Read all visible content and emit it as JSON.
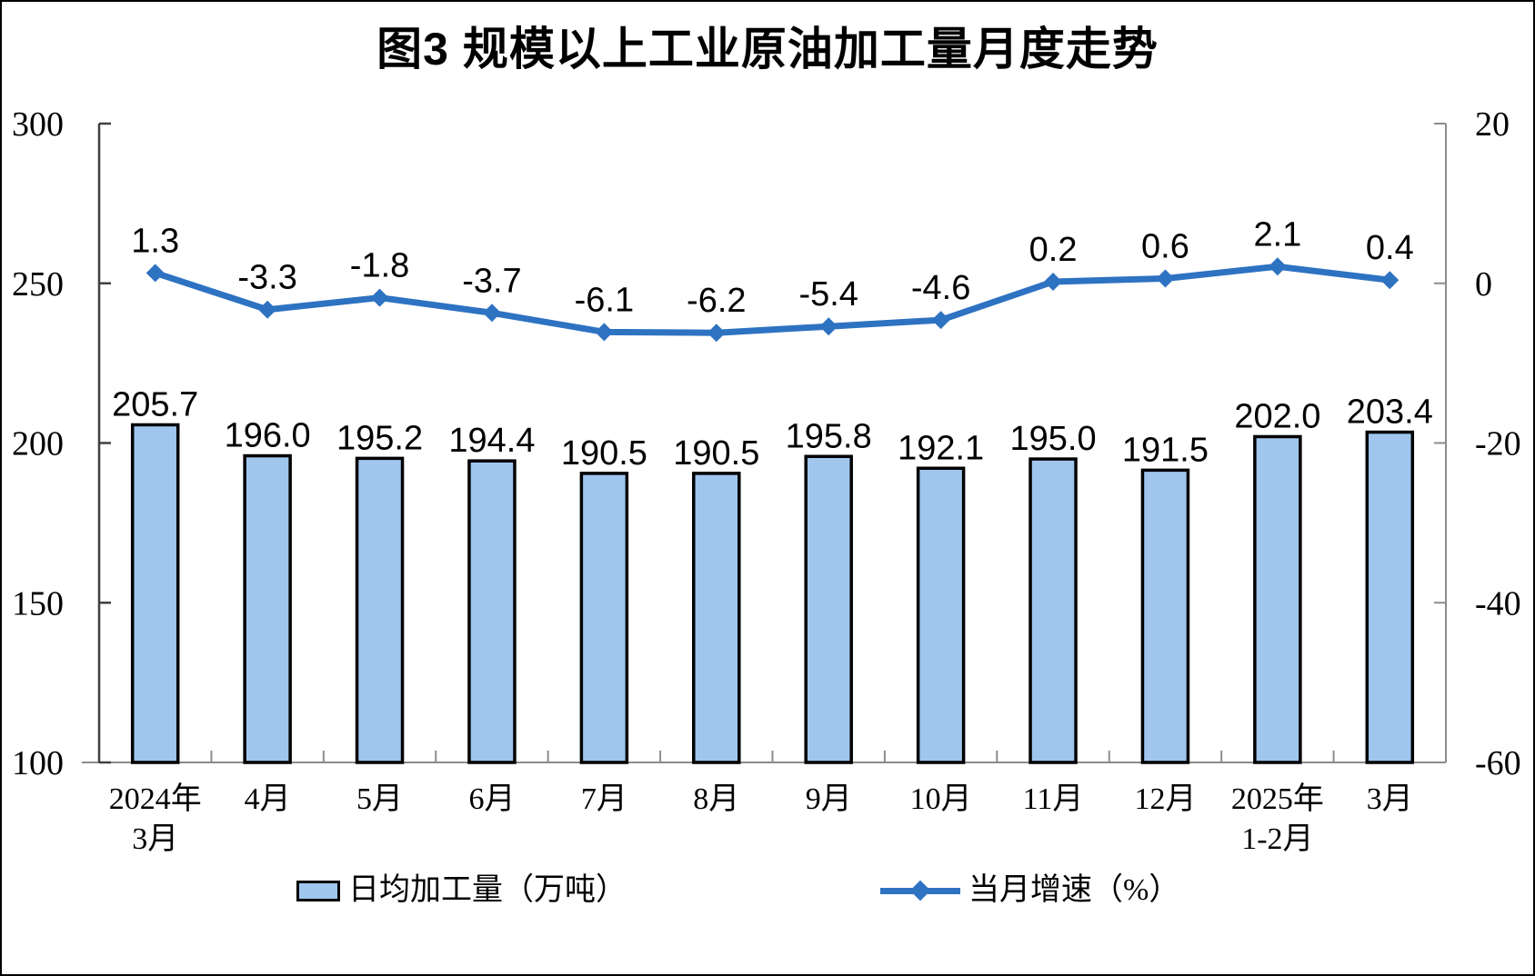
{
  "title": "图3 规模以上工业原油加工量月度走势",
  "legend": {
    "bar_label": "日均加工量（万吨）",
    "line_label": "当月增速（%）"
  },
  "colors": {
    "bar_fill": "#A0C6EE",
    "bar_stroke": "#000000",
    "line": "#2E72C2",
    "axis_dark": "#3F3F3F",
    "axis_light": "#8C8C8C",
    "label_text": "#000000"
  },
  "chart_data": {
    "type": "combo",
    "categories": [
      "2024年\n3月",
      "4月",
      "5月",
      "6月",
      "7月",
      "8月",
      "9月",
      "10月",
      "11月",
      "12月",
      "2025年\n1-2月",
      "3月"
    ],
    "series": [
      {
        "name": "日均加工量（万吨）",
        "type": "bar",
        "axis": "left",
        "values": [
          205.7,
          196.0,
          195.2,
          194.4,
          190.5,
          190.5,
          195.8,
          192.1,
          195.0,
          191.5,
          202.0,
          203.4
        ]
      },
      {
        "name": "当月增速（%）",
        "type": "line",
        "axis": "right",
        "values": [
          1.3,
          -3.3,
          -1.8,
          -3.7,
          -6.1,
          -6.2,
          -5.4,
          -4.6,
          0.2,
          0.6,
          2.1,
          0.4
        ]
      }
    ],
    "left_axis": {
      "min": 100,
      "max": 300,
      "ticks": [
        300,
        250,
        200,
        150,
        100
      ]
    },
    "right_axis": {
      "min": -60,
      "max": 20,
      "ticks": [
        20,
        0,
        -20,
        -40,
        -60
      ]
    },
    "grid": false,
    "legend_position": "bottom"
  }
}
